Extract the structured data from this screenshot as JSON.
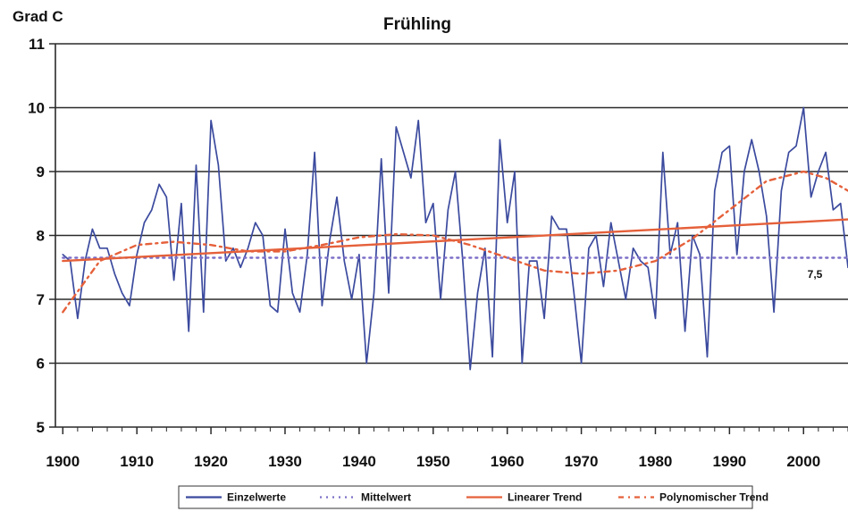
{
  "chart_data": {
    "type": "line",
    "title": "Frühling",
    "ylabel": "Grad C",
    "xlabel": "",
    "xlim": [
      1899,
      2006
    ],
    "ylim": [
      5,
      11
    ],
    "x_ticks": [
      1900,
      1910,
      1920,
      1930,
      1940,
      1950,
      1960,
      1970,
      1980,
      1990,
      2000
    ],
    "y_ticks": [
      5,
      6,
      7,
      8,
      9,
      10,
      11
    ],
    "grid": "horizontal",
    "legend_position": "bottom",
    "annotation": "7,5",
    "series": [
      {
        "name": "Einzelwerte",
        "style": "solid",
        "color": "#3b4a9e",
        "x": [
          1900,
          1901,
          1902,
          1903,
          1904,
          1905,
          1906,
          1907,
          1908,
          1909,
          1910,
          1911,
          1912,
          1913,
          1914,
          1915,
          1916,
          1917,
          1918,
          1919,
          1920,
          1921,
          1922,
          1923,
          1924,
          1925,
          1926,
          1927,
          1928,
          1929,
          1930,
          1931,
          1932,
          1933,
          1934,
          1935,
          1936,
          1937,
          1938,
          1939,
          1940,
          1941,
          1942,
          1943,
          1944,
          1945,
          1946,
          1947,
          1948,
          1949,
          1950,
          1951,
          1952,
          1953,
          1954,
          1955,
          1956,
          1957,
          1958,
          1959,
          1960,
          1961,
          1962,
          1963,
          1964,
          1965,
          1966,
          1967,
          1968,
          1969,
          1970,
          1971,
          1972,
          1973,
          1974,
          1975,
          1976,
          1977,
          1978,
          1979,
          1980,
          1981,
          1982,
          1983,
          1984,
          1985,
          1986,
          1987,
          1988,
          1989,
          1990,
          1991,
          1992,
          1993,
          1994,
          1995,
          1996,
          1997,
          1998,
          1999,
          2000,
          2001,
          2002,
          2003,
          2004,
          2005,
          2006
        ],
        "values": [
          7.7,
          7.6,
          6.7,
          7.6,
          8.1,
          7.8,
          7.8,
          7.4,
          7.1,
          6.9,
          7.7,
          8.2,
          8.4,
          8.8,
          8.6,
          7.3,
          8.5,
          6.5,
          9.1,
          6.8,
          9.8,
          9.1,
          7.6,
          7.8,
          7.5,
          7.8,
          8.2,
          8.0,
          6.9,
          6.8,
          8.1,
          7.1,
          6.8,
          7.7,
          9.3,
          6.9,
          7.9,
          8.6,
          7.6,
          7.0,
          7.7,
          6.0,
          7.1,
          9.2,
          7.1,
          9.7,
          9.3,
          8.9,
          9.8,
          8.2,
          8.5,
          7.0,
          8.4,
          9.0,
          7.6,
          5.9,
          7.1,
          7.8,
          6.1,
          9.5,
          8.2,
          9.0,
          6.0,
          7.6,
          7.6,
          6.7,
          8.3,
          8.1,
          8.1,
          7.1,
          6.0,
          7.8,
          8.0,
          7.2,
          8.2,
          7.6,
          7.0,
          7.8,
          7.6,
          7.5,
          6.7,
          9.3,
          7.7,
          8.2,
          6.5,
          8.0,
          7.7,
          6.1,
          8.7,
          9.3,
          9.4,
          7.7,
          9.0,
          9.5,
          9.0,
          8.3,
          6.8,
          8.7,
          9.3,
          9.4,
          10.0,
          8.6,
          9.0,
          9.3,
          8.4,
          8.5,
          7.5
        ]
      },
      {
        "name": "Mittelwert",
        "style": "dotted",
        "color": "#7b6fc8",
        "x": [
          1900,
          2006
        ],
        "values": [
          7.65,
          7.65
        ]
      },
      {
        "name": "Linearer Trend",
        "style": "solid",
        "color": "#e5603a",
        "x": [
          1900,
          2006
        ],
        "values": [
          7.6,
          8.25
        ]
      },
      {
        "name": "Polynomischer Trend",
        "style": "dashdot",
        "color": "#e5603a",
        "x": [
          1900,
          1905,
          1910,
          1915,
          1920,
          1925,
          1930,
          1935,
          1940,
          1945,
          1950,
          1955,
          1960,
          1965,
          1970,
          1975,
          1980,
          1985,
          1990,
          1995,
          2000,
          2003,
          2006
        ],
        "values": [
          6.8,
          7.6,
          7.85,
          7.9,
          7.85,
          7.75,
          7.75,
          7.85,
          7.97,
          8.02,
          8.0,
          7.85,
          7.65,
          7.45,
          7.4,
          7.45,
          7.6,
          7.95,
          8.4,
          8.85,
          9.0,
          8.9,
          8.7
        ]
      }
    ]
  }
}
